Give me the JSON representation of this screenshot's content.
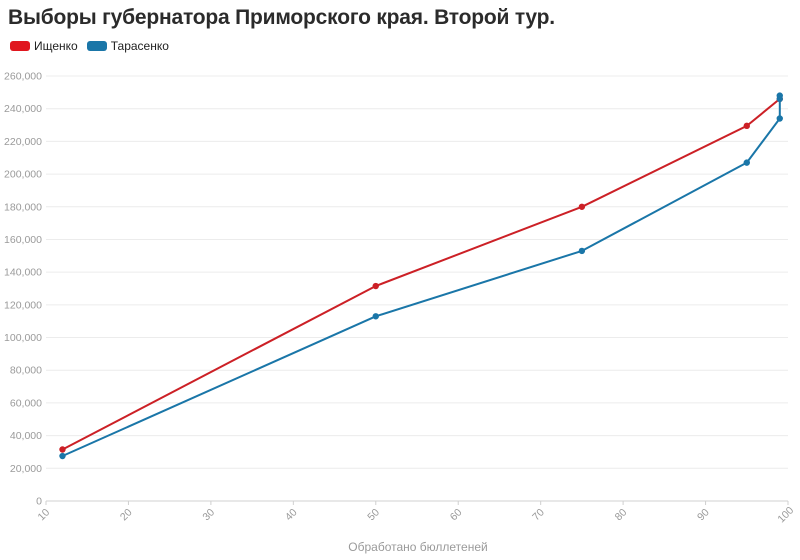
{
  "chart_data": {
    "type": "line",
    "title": "Выборы губернатора Приморского края. Второй тур.",
    "xlabel": "Обработано бюллетеней",
    "ylabel": "",
    "xlim": [
      10,
      100
    ],
    "ylim": [
      0,
      260000
    ],
    "x_ticks": [
      10,
      20,
      30,
      40,
      50,
      60,
      70,
      80,
      90,
      100
    ],
    "y_ticks": [
      0,
      20000,
      40000,
      60000,
      80000,
      100000,
      120000,
      140000,
      160000,
      180000,
      200000,
      220000,
      240000,
      260000
    ],
    "y_tick_labels": [
      "0",
      "20,000",
      "40,000",
      "60,000",
      "80,000",
      "100,000",
      "120,000",
      "140,000",
      "160,000",
      "180,000",
      "200,000",
      "220,000",
      "240,000",
      "260,000"
    ],
    "grid": "horizontal",
    "legend_position": "top-left",
    "series": [
      {
        "name": "Ищенко",
        "color": "#cc2026",
        "x": [
          12,
          50,
          75,
          95,
          99
        ],
        "y": [
          31500,
          131500,
          180000,
          229500,
          246000
        ]
      },
      {
        "name": "Тарасенко",
        "color": "#1a76a8",
        "x": [
          12,
          50,
          75,
          95,
          99,
          99,
          99
        ],
        "y": [
          27500,
          113000,
          153000,
          207000,
          234000,
          246000,
          248000
        ]
      }
    ]
  }
}
